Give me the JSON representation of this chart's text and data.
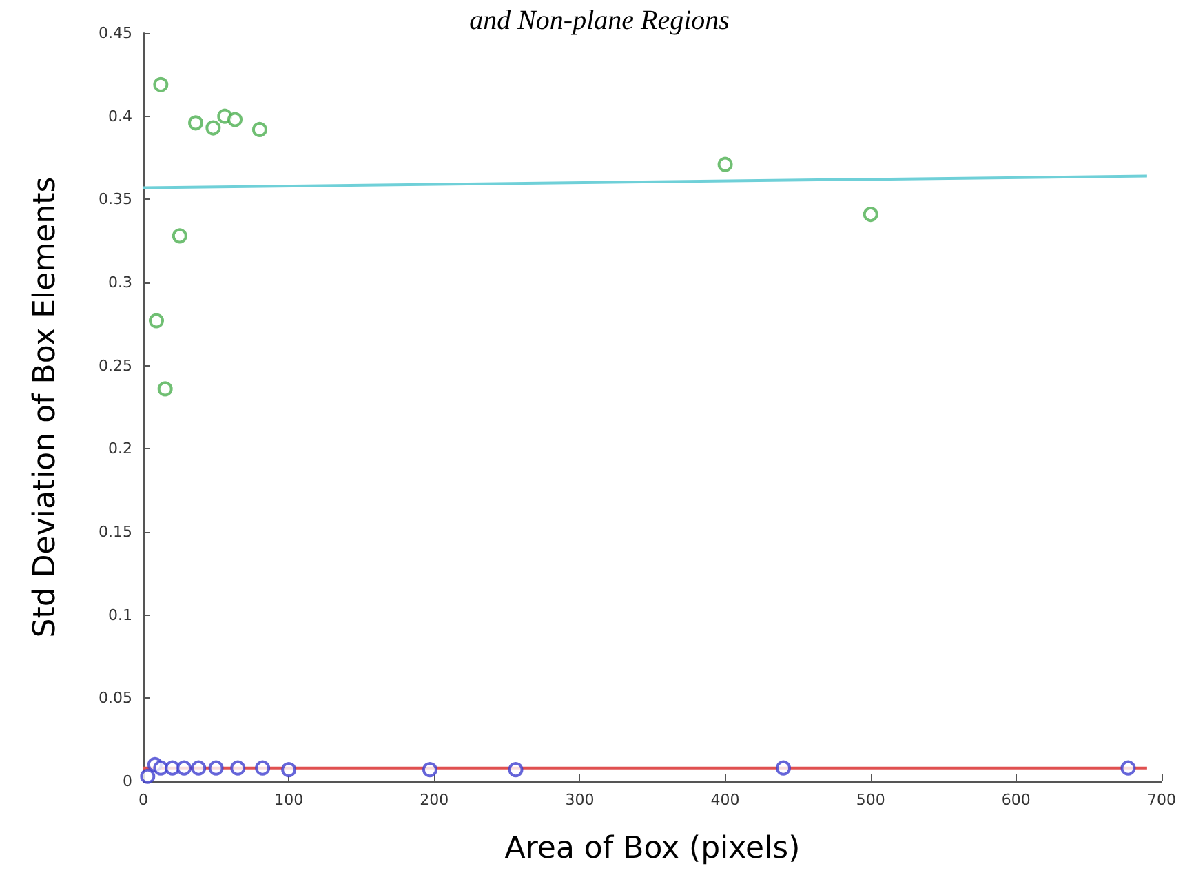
{
  "chart_data": {
    "type": "scatter",
    "title": "and Non-plane Regions",
    "xlabel": "Area of Box (pixels)",
    "ylabel": "Std Deviation of Box Elements",
    "xlim": [
      0,
      700
    ],
    "xticks": [
      0,
      100,
      200,
      300,
      400,
      500,
      600,
      700
    ],
    "ylim": [
      0,
      0.45
    ],
    "yticks": [
      0,
      0.05,
      0.1,
      0.15,
      0.2,
      0.25,
      0.3,
      0.35,
      0.4,
      0.45
    ],
    "marker": "circle",
    "grid": false,
    "series": [
      {
        "color": "#4caf50",
        "x": [
          9,
          12,
          15,
          25,
          36,
          48,
          56,
          63,
          80,
          400,
          500
        ],
        "values": [
          0.277,
          0.419,
          0.236,
          0.328,
          0.396,
          0.393,
          0.4,
          0.398,
          0.392,
          0.371,
          0.341
        ]
      },
      {
        "color": "#3f3fd0",
        "x": [
          3,
          8,
          12,
          20,
          28,
          38,
          50,
          65,
          82,
          100,
          197,
          256,
          440,
          677
        ],
        "values": [
          0.003,
          0.01,
          0.008,
          0.008,
          0.008,
          0.008,
          0.008,
          0.008,
          0.008,
          0.007,
          0.007,
          0.007,
          0.008,
          0.008
        ]
      },
      {
        "type": "line",
        "marker": "none",
        "color": "#6fd0d8",
        "x": [
          0,
          690
        ],
        "values": [
          0.357,
          0.364
        ]
      },
      {
        "type": "line",
        "marker": "none",
        "color": "#e05050",
        "x": [
          0,
          690
        ],
        "values": [
          0.008,
          0.008
        ]
      }
    ]
  }
}
